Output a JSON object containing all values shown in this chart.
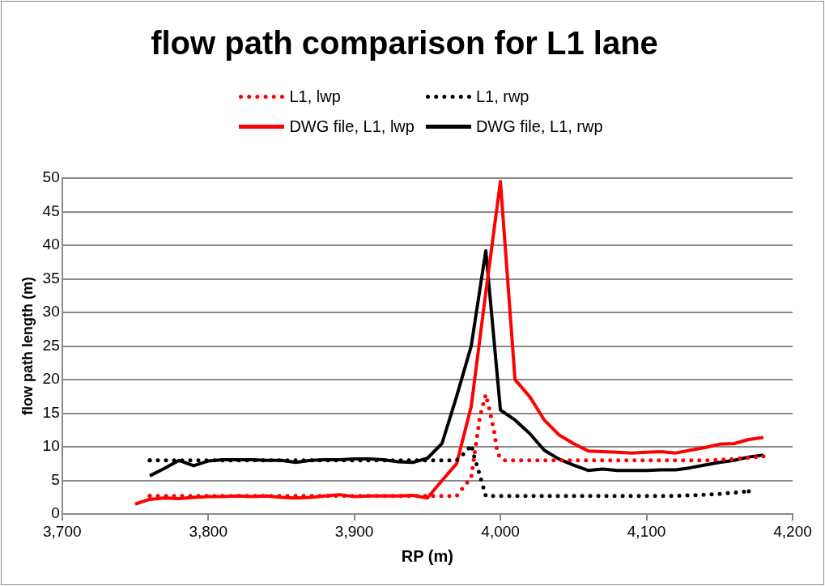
{
  "chart_data": {
    "type": "line",
    "title": "flow path comparison for L1 lane",
    "xlabel": "RP (m)",
    "ylabel": "flow path length (m)",
    "xlim": [
      3700,
      4200
    ],
    "xticks": [
      {
        "value": 3700,
        "label": "3,700"
      },
      {
        "value": 3800,
        "label": "3,800"
      },
      {
        "value": 3900,
        "label": "3,900"
      },
      {
        "value": 4000,
        "label": "4,000"
      },
      {
        "value": 4100,
        "label": "4,100"
      },
      {
        "value": 4200,
        "label": "4,200"
      }
    ],
    "ylim": [
      0,
      50
    ],
    "yticks": [
      0,
      5,
      10,
      15,
      20,
      25,
      30,
      35,
      40,
      45,
      50
    ],
    "grid": "y",
    "legend": "top",
    "marker": "none",
    "series": [
      {
        "name": "L1, lwp",
        "color": "#ff0000",
        "line_style": "dotted",
        "x": [
          3760,
          3780,
          3800,
          3820,
          3840,
          3860,
          3880,
          3900,
          3920,
          3940,
          3960,
          3970,
          3975,
          3980,
          3983,
          3986,
          3988,
          3990,
          3993,
          3996,
          3998,
          4002,
          4020,
          4040,
          4060,
          4080,
          4100,
          4120,
          4140,
          4160,
          4170,
          4180
        ],
        "values": [
          2.7,
          2.7,
          2.7,
          2.7,
          2.7,
          2.7,
          2.7,
          2.7,
          2.7,
          2.7,
          2.7,
          2.7,
          4.1,
          5.4,
          10,
          14.5,
          16.2,
          17.8,
          15.1,
          12,
          9,
          8,
          8,
          8,
          8,
          8,
          8,
          8,
          8,
          8.2,
          8.4,
          8.6
        ]
      },
      {
        "name": "L1, rwp",
        "color": "#000000",
        "line_style": "dotted",
        "x": [
          3760,
          3780,
          3800,
          3820,
          3840,
          3860,
          3880,
          3900,
          3920,
          3940,
          3960,
          3970,
          3977,
          3980,
          3982,
          3984,
          3986,
          3988,
          3990,
          4010,
          4040,
          4060,
          4080,
          4100,
          4120,
          4130,
          4140,
          4150,
          4160,
          4170
        ],
        "values": [
          8,
          8,
          8,
          8,
          8,
          8,
          8,
          8,
          8,
          8,
          8,
          8,
          9.4,
          10.3,
          8.6,
          7.2,
          5.7,
          4.2,
          2.7,
          2.7,
          2.7,
          2.7,
          2.7,
          2.7,
          2.7,
          2.8,
          2.9,
          3,
          3.2,
          3.4
        ]
      },
      {
        "name": "DWG file, L1, lwp",
        "color": "#ff0000",
        "line_style": "solid",
        "x": [
          3750,
          3760,
          3770,
          3780,
          3790,
          3800,
          3810,
          3820,
          3830,
          3840,
          3850,
          3860,
          3870,
          3880,
          3890,
          3900,
          3910,
          3920,
          3930,
          3940,
          3950,
          3960,
          3970,
          3980,
          3990,
          4000,
          4010,
          4020,
          4030,
          4040,
          4050,
          4060,
          4070,
          4080,
          4090,
          4100,
          4110,
          4120,
          4130,
          4140,
          4150,
          4160,
          4170,
          4180
        ],
        "values": [
          1.5,
          2.2,
          2.4,
          2.3,
          2.5,
          2.6,
          2.6,
          2.7,
          2.6,
          2.7,
          2.5,
          2.4,
          2.5,
          2.7,
          2.9,
          2.6,
          2.7,
          2.7,
          2.7,
          2.8,
          2.4,
          5,
          7.5,
          16,
          33,
          49.5,
          20,
          17.5,
          14,
          11.8,
          10.5,
          9.4,
          9.3,
          9.2,
          9.1,
          9.2,
          9.3,
          9.1,
          9.5,
          9.9,
          10.4,
          10.5,
          11.1,
          11.4
        ]
      },
      {
        "name": "DWG file, L1, rwp",
        "color": "#000000",
        "line_style": "solid",
        "x": [
          3760,
          3770,
          3780,
          3790,
          3800,
          3810,
          3820,
          3830,
          3840,
          3850,
          3860,
          3870,
          3880,
          3890,
          3900,
          3910,
          3920,
          3930,
          3940,
          3950,
          3960,
          3970,
          3980,
          3990,
          4000,
          4010,
          4020,
          4030,
          4040,
          4050,
          4060,
          4070,
          4080,
          4090,
          4100,
          4110,
          4120,
          4130,
          4140,
          4150,
          4160,
          4170,
          4180
        ],
        "values": [
          5.7,
          6.8,
          8,
          7.2,
          7.9,
          8.1,
          8.1,
          8.1,
          8,
          8,
          7.7,
          8,
          8.1,
          8.1,
          8.2,
          8.2,
          8.1,
          7.8,
          7.7,
          8.3,
          10.5,
          17.5,
          25,
          39.2,
          15.5,
          14,
          12,
          9.5,
          8.2,
          7.3,
          6.5,
          6.7,
          6.5,
          6.5,
          6.5,
          6.6,
          6.6,
          6.9,
          7.3,
          7.7,
          8,
          8.5,
          8.8
        ]
      }
    ]
  }
}
